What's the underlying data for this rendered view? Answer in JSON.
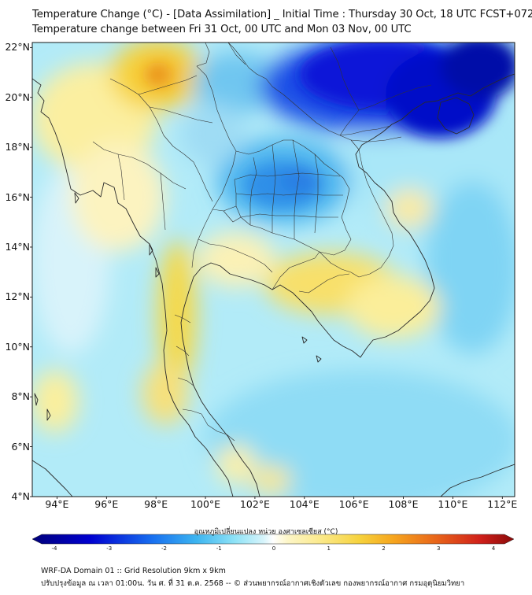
{
  "header": {
    "title_line1": "Temperature Change (°C) - [Data Assimilation] _ Initial Time : Thursday 30 Oct, 18 UTC FCST+072",
    "title_line2": "Temperature change between Fri 31 Oct, 00 UTC and Mon 03 Nov, 00 UTC"
  },
  "map": {
    "lat_labels": [
      "22°N",
      "20°N",
      "18°N",
      "16°N",
      "14°N",
      "12°N",
      "10°N",
      "8°N",
      "6°N",
      "4°N"
    ],
    "lon_labels": [
      "94°E",
      "96°E",
      "98°E",
      "100°E",
      "102°E",
      "104°E",
      "106°E",
      "108°E",
      "110°E",
      "112°E"
    ],
    "lat_values": [
      22,
      20,
      18,
      16,
      14,
      12,
      10,
      8,
      6,
      4
    ],
    "lon_values": [
      94,
      96,
      98,
      100,
      102,
      104,
      106,
      108,
      110,
      112
    ],
    "extent": {
      "lon_min": 93,
      "lon_max": 112.5,
      "lat_min": 4,
      "lat_max": 22.2
    }
  },
  "colorbar": {
    "label": "อุณหภูมิเปลี่ยนแปลง หน่วย องศาเซลเซียส (°C)",
    "ticks": [
      "-4",
      "-3",
      "-2",
      "-1",
      "0",
      "1",
      "2",
      "3",
      "4"
    ],
    "min": -4,
    "max": 4,
    "colors": [
      "#00007a",
      "#0000c8",
      "#0a3cf0",
      "#2a8cf0",
      "#4ec3f0",
      "#8ee2f6",
      "#d6f4fb",
      "#ffffff",
      "#fdf6c8",
      "#fbe98a",
      "#f6d23c",
      "#f6a51e",
      "#e8641a",
      "#d0201a",
      "#8a0a0a"
    ]
  },
  "footer": {
    "line1": "WRF-DA Domain 01 :: Grid Resolution 9km x 9km",
    "line2": "ปรับปรุงข้อมูล ณ เวลา 01:00น. วัน ศ. ที่ 31 ต.ค. 2568 -- © ส่วนพยากรณ์อากาศเชิงตัวเลข กองพยากรณ์อากาศ กรมอุตุนิยมวิทยา"
  }
}
